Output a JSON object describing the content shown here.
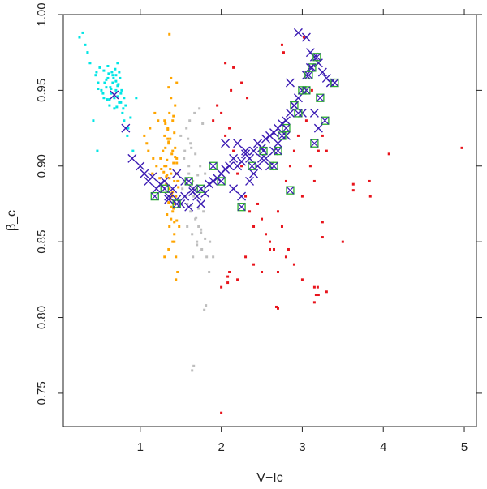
{
  "chart_data": {
    "type": "scatter",
    "title": "",
    "xlabel": "V−Ic",
    "ylabel": "β_c",
    "xlim": [
      0.05,
      5.15
    ],
    "ylim": [
      0.728,
      1.0
    ],
    "x_ticks": [
      "1",
      "2",
      "3",
      "4",
      "5"
    ],
    "y_ticks": [
      "0.75",
      "0.80",
      "0.85",
      "0.90",
      "0.95",
      "1.00"
    ],
    "x_tick_values": [
      1,
      2,
      3,
      4,
      5
    ],
    "y_tick_values": [
      0.75,
      0.8,
      0.85,
      0.9,
      0.95,
      1.0
    ],
    "grid": false,
    "legend": "none",
    "colors": {
      "cyan": "#00e5e5",
      "orange": "#ffa500",
      "gray": "#bebebe",
      "red": "#e8141c",
      "cross": "#3b1bb3",
      "box": "#2bb02b"
    },
    "series": [
      {
        "color": "cyan",
        "marker": "dot",
        "x": [
          0.25,
          0.32,
          0.35,
          0.38,
          0.45,
          0.48,
          0.5,
          0.52,
          0.55,
          0.58,
          0.6,
          0.62,
          0.64,
          0.66,
          0.68,
          0.7,
          0.72,
          0.74,
          0.76,
          0.78,
          0.8,
          0.82,
          0.85,
          0.88,
          0.55,
          0.6,
          0.65,
          0.7,
          0.75,
          0.62,
          0.68,
          0.72,
          0.58,
          0.64,
          0.7,
          0.76,
          0.66,
          0.71,
          0.77,
          0.8,
          0.46,
          0.54,
          0.59,
          0.63,
          0.67,
          0.73,
          0.79,
          0.48,
          0.56,
          0.61,
          0.69,
          0.74,
          0.84,
          0.42,
          0.91,
          0.95,
          0.47,
          0.35,
          0.29,
          0.72
        ],
        "y": [
          0.985,
          0.98,
          0.975,
          0.968,
          0.96,
          0.955,
          0.965,
          0.95,
          0.945,
          0.952,
          0.958,
          0.94,
          0.948,
          0.955,
          0.945,
          0.95,
          0.953,
          0.942,
          0.948,
          0.935,
          0.93,
          0.94,
          0.925,
          0.932,
          0.963,
          0.966,
          0.962,
          0.96,
          0.958,
          0.944,
          0.938,
          0.946,
          0.957,
          0.951,
          0.956,
          0.942,
          0.96,
          0.939,
          0.95,
          0.945,
          0.962,
          0.948,
          0.944,
          0.952,
          0.958,
          0.954,
          0.938,
          0.951,
          0.955,
          0.961,
          0.964,
          0.962,
          0.92,
          0.93,
          0.91,
          0.945,
          0.91,
          0.975,
          0.988,
          0.968
        ]
      },
      {
        "color": "orange",
        "marker": "dot",
        "x": [
          1.3,
          1.35,
          1.4,
          1.45,
          1.32,
          1.38,
          1.42,
          1.36,
          1.44,
          1.31,
          1.39,
          1.41,
          1.37,
          1.33,
          1.46,
          1.34,
          1.43,
          1.29,
          1.47,
          1.35,
          1.4,
          1.38,
          1.36,
          1.42,
          1.3,
          1.44,
          1.32,
          1.39,
          1.37,
          1.41,
          1.33,
          1.45,
          1.34,
          1.4,
          1.36,
          1.43,
          1.38,
          1.31,
          1.42,
          1.35,
          1.28,
          1.25,
          1.2,
          1.15,
          1.1,
          1.05,
          1.22,
          1.18,
          1.12,
          1.08,
          1.26,
          1.24,
          1.16,
          1.3,
          1.35,
          1.4,
          1.45,
          1.38,
          1.42,
          1.44,
          1.46,
          1.48,
          1.41,
          1.39,
          1.47,
          1.36,
          1.33,
          1.43,
          1.37,
          1.34,
          1.45,
          1.32,
          1.4,
          1.38,
          1.42,
          1.3,
          1.44,
          1.36,
          1.35,
          1.41
        ],
        "y": [
          0.92,
          0.915,
          0.91,
          0.905,
          0.9,
          0.895,
          0.89,
          0.885,
          0.88,
          0.912,
          0.908,
          0.902,
          0.898,
          0.894,
          0.89,
          0.918,
          0.906,
          0.896,
          0.886,
          0.876,
          0.87,
          0.865,
          0.86,
          0.855,
          0.9,
          0.895,
          0.888,
          0.882,
          0.878,
          0.872,
          0.868,
          0.864,
          0.925,
          0.93,
          0.935,
          0.94,
          0.945,
          0.928,
          0.922,
          0.916,
          0.91,
          0.905,
          0.9,
          0.895,
          0.91,
          0.92,
          0.93,
          0.935,
          0.925,
          0.915,
          0.898,
          0.892,
          0.905,
          0.84,
          0.845,
          0.85,
          0.955,
          0.958,
          0.85,
          0.84,
          0.83,
          0.86,
          0.875,
          0.88,
          0.89,
          0.892,
          0.904,
          0.912,
          0.918,
          0.924,
          0.902,
          0.893,
          0.883,
          0.873,
          0.863,
          0.93,
          0.825,
          0.987,
          0.952,
          0.933
        ]
      },
      {
        "color": "gray",
        "marker": "dot",
        "x": [
          1.5,
          1.55,
          1.6,
          1.65,
          1.7,
          1.52,
          1.58,
          1.62,
          1.68,
          1.72,
          1.54,
          1.6,
          1.66,
          1.74,
          1.78,
          1.56,
          1.63,
          1.69,
          1.75,
          1.8,
          1.58,
          1.64,
          1.7,
          1.76,
          1.82,
          1.6,
          1.66,
          1.72,
          1.86,
          1.9,
          1.62,
          1.68,
          1.74,
          1.8,
          1.85,
          1.65,
          1.7,
          1.75,
          1.64,
          1.66,
          1.81,
          1.79,
          1.57,
          1.61,
          1.67,
          1.73,
          1.77,
          1.59,
          1.63,
          1.71
        ],
        "y": [
          0.92,
          0.91,
          0.9,
          0.89,
          0.88,
          0.885,
          0.875,
          0.87,
          0.865,
          0.86,
          0.905,
          0.895,
          0.885,
          0.875,
          0.87,
          0.88,
          0.874,
          0.866,
          0.858,
          0.852,
          0.86,
          0.855,
          0.85,
          0.845,
          0.84,
          0.89,
          0.88,
          0.872,
          0.85,
          0.84,
          0.915,
          0.908,
          0.9,
          0.895,
          0.83,
          0.84,
          0.848,
          0.856,
          0.765,
          0.768,
          0.808,
          0.805,
          0.925,
          0.93,
          0.935,
          0.938,
          0.928,
          0.918,
          0.912,
          0.894
        ]
      },
      {
        "color": "red",
        "marker": "dot",
        "x": [
          1.9,
          1.95,
          2.0,
          2.05,
          2.1,
          2.15,
          2.2,
          2.25,
          2.3,
          2.35,
          2.4,
          2.45,
          2.5,
          2.55,
          2.6,
          2.65,
          2.7,
          2.75,
          2.8,
          2.85,
          2.9,
          2.95,
          3.0,
          3.05,
          3.1,
          3.15,
          3.2,
          3.25,
          3.3,
          2.0,
          2.1,
          2.2,
          2.3,
          2.4,
          2.5,
          2.6,
          2.7,
          2.8,
          2.9,
          3.0,
          3.15,
          3.2,
          3.25,
          3.5,
          3.63,
          3.63,
          3.83,
          3.84,
          4.07,
          4.97,
          2.08,
          2.08,
          2.7,
          2.68,
          2.83,
          3.3,
          2.75,
          2.77,
          3.02,
          3.12,
          2.15,
          2.25,
          2.32,
          2.05,
          2.12,
          2.0,
          3.15,
          3.17,
          3.19,
          3.25
        ],
        "y": [
          0.93,
          0.94,
          0.935,
          0.92,
          0.925,
          0.91,
          0.895,
          0.9,
          0.88,
          0.87,
          0.86,
          0.875,
          0.865,
          0.855,
          0.85,
          0.845,
          0.87,
          0.86,
          0.89,
          0.9,
          0.91,
          0.92,
          0.88,
          0.93,
          0.9,
          0.89,
          0.91,
          0.92,
          0.91,
          0.82,
          0.83,
          0.825,
          0.84,
          0.835,
          0.83,
          0.845,
          0.83,
          0.84,
          0.835,
          0.825,
          0.82,
          0.815,
          0.863,
          0.85,
          0.888,
          0.884,
          0.89,
          0.88,
          0.908,
          0.912,
          0.827,
          0.823,
          0.806,
          0.807,
          0.845,
          0.817,
          0.98,
          0.975,
          0.985,
          0.95,
          0.965,
          0.955,
          0.945,
          0.968,
          0.95,
          0.737,
          0.81,
          0.815,
          0.82,
          0.853
        ]
      },
      {
        "color": "cross",
        "marker": "x",
        "x": [
          0.68,
          0.82,
          0.9,
          1.0,
          1.05,
          1.1,
          1.15,
          1.2,
          1.25,
          1.3,
          1.35,
          1.4,
          1.45,
          1.5,
          1.55,
          1.6,
          1.65,
          1.7,
          1.75,
          1.8,
          1.85,
          1.9,
          1.95,
          2.0,
          2.05,
          2.1,
          2.15,
          2.2,
          2.25,
          2.3,
          2.35,
          2.4,
          2.45,
          2.5,
          2.55,
          2.6,
          2.65,
          2.7,
          2.75,
          2.8,
          2.85,
          2.9,
          2.95,
          3.0,
          3.05,
          3.1,
          3.15,
          3.2,
          3.25,
          3.3,
          3.35,
          3.4,
          2.85,
          2.95,
          3.05,
          3.1,
          2.9,
          3.0,
          3.2,
          2.2,
          2.4,
          2.6,
          2.3,
          2.5,
          2.7,
          2.8,
          1.45,
          1.55,
          1.65,
          1.75,
          2.05,
          2.15,
          2.25,
          2.35,
          2.45,
          2.55,
          2.65,
          3.15,
          1.35,
          1.25
        ],
        "y": [
          0.947,
          0.925,
          0.905,
          0.9,
          0.895,
          0.89,
          0.893,
          0.885,
          0.888,
          0.89,
          0.88,
          0.885,
          0.878,
          0.875,
          0.88,
          0.873,
          0.883,
          0.88,
          0.885,
          0.882,
          0.888,
          0.89,
          0.892,
          0.895,
          0.898,
          0.9,
          0.905,
          0.9,
          0.903,
          0.908,
          0.905,
          0.91,
          0.915,
          0.912,
          0.918,
          0.92,
          0.922,
          0.925,
          0.928,
          0.93,
          0.935,
          0.94,
          0.945,
          0.95,
          0.96,
          0.965,
          0.972,
          0.968,
          0.962,
          0.958,
          0.955,
          0.955,
          0.955,
          0.988,
          0.985,
          0.975,
          0.94,
          0.935,
          0.925,
          0.915,
          0.895,
          0.9,
          0.91,
          0.905,
          0.915,
          0.92,
          0.895,
          0.89,
          0.885,
          0.875,
          0.915,
          0.885,
          0.88,
          0.89,
          0.9,
          0.905,
          0.91,
          0.935,
          0.878,
          0.888
        ]
      },
      {
        "color": "box",
        "marker": "box-x",
        "x": [
          1.18,
          1.3,
          1.45,
          1.6,
          1.75,
          1.9,
          2.0,
          2.25,
          2.38,
          2.52,
          2.65,
          2.75,
          2.85,
          2.9,
          3.0,
          3.08,
          3.12,
          3.18,
          3.22,
          3.28,
          3.4,
          3.15,
          2.95,
          2.7,
          2.8,
          3.05
        ],
        "y": [
          0.88,
          0.885,
          0.875,
          0.89,
          0.885,
          0.9,
          0.89,
          0.873,
          0.9,
          0.91,
          0.9,
          0.92,
          0.884,
          0.94,
          0.95,
          0.96,
          0.965,
          0.972,
          0.945,
          0.93,
          0.955,
          0.915,
          0.935,
          0.91,
          0.925,
          0.95
        ]
      }
    ]
  }
}
